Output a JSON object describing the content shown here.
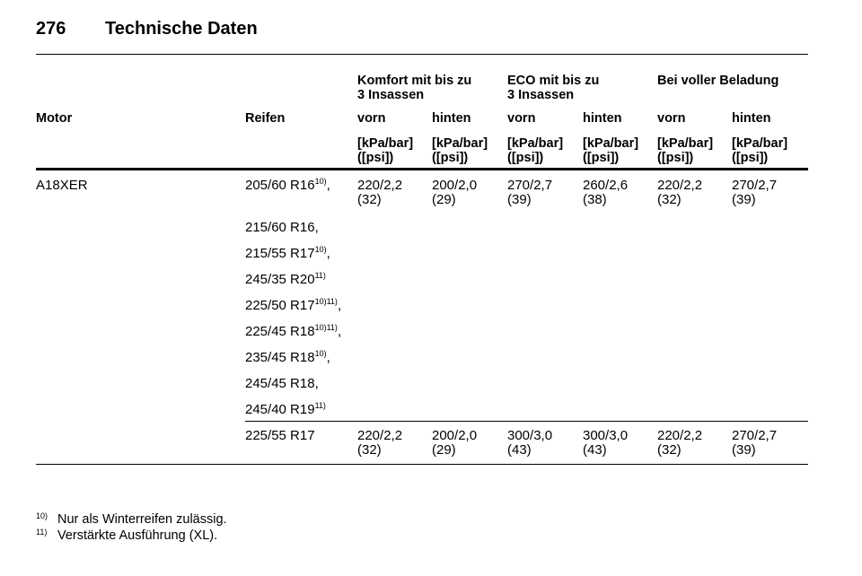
{
  "header": {
    "page_number": "276",
    "title": "Technische Daten"
  },
  "table": {
    "group_headers": [
      "Komfort mit bis zu\n3 Insassen",
      "ECO mit bis zu\n3 Insassen",
      "Bei voller Beladung"
    ],
    "columns": [
      "Motor",
      "Reifen",
      "vorn",
      "hinten",
      "vorn",
      "hinten",
      "vorn",
      "hinten"
    ],
    "units": [
      "[kPa/bar]\n([psi])",
      "[kPa/bar]\n([psi])",
      "[kPa/bar]\n([psi])",
      "[kPa/bar]\n([psi])",
      "[kPa/bar]\n([psi])",
      "[kPa/bar]\n([psi])"
    ],
    "rows": [
      {
        "motor": "A18XER",
        "tires": [
          {
            "size": "205/60 R16",
            "note": "10)",
            "suffix": ","
          },
          {
            "size": "215/60 R16,"
          },
          {
            "size": "215/55 R17",
            "note": "10)",
            "suffix": ","
          },
          {
            "size": "245/35 R20",
            "note": "11)"
          },
          {
            "size": "225/50 R17",
            "note": "10)11)",
            "suffix": ","
          },
          {
            "size": "225/45 R18",
            "note": "10)11)",
            "suffix": ","
          },
          {
            "size": "235/45 R18",
            "note": "10)",
            "suffix": ","
          },
          {
            "size": "245/45 R18,"
          },
          {
            "size": "245/40 R19",
            "note": "11)"
          }
        ],
        "pressures": [
          "220/2,2\n(32)",
          "200/2,0\n(29)",
          "270/2,7\n(39)",
          "260/2,6\n(38)",
          "220/2,2\n(32)",
          "270/2,7\n(39)"
        ]
      },
      {
        "tires": [
          {
            "size": "225/55 R17"
          }
        ],
        "pressures": [
          "220/2,2\n(32)",
          "200/2,0\n(29)",
          "300/3,0\n(43)",
          "300/3,0\n(43)",
          "220/2,2\n(32)",
          "270/2,7\n(39)"
        ]
      }
    ]
  },
  "footnotes": [
    {
      "mark": "10)",
      "text": "Nur als Winterreifen zulässig."
    },
    {
      "mark": "11)",
      "text": "Verstärkte Ausführung (XL)."
    }
  ]
}
